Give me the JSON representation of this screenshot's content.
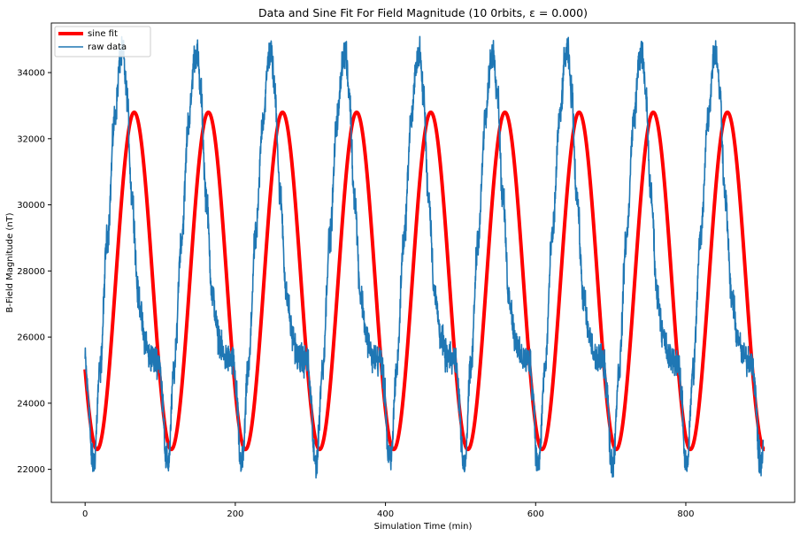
{
  "chart_data": {
    "type": "line",
    "title": "Data and Sine Fit For Field Magnitude (10 0rbits, ε = 0.000)",
    "xlabel": "Simulation Time (min)",
    "ylabel": "B-Field Magnitude (nT)",
    "xlim": [
      -45,
      945
    ],
    "ylim": [
      21000,
      35500
    ],
    "xticks": [
      0,
      200,
      400,
      600,
      800
    ],
    "yticks": [
      22000,
      24000,
      26000,
      28000,
      30000,
      32000,
      34000
    ],
    "grid": false,
    "legend": {
      "placement": "top-left"
    },
    "series": [
      {
        "name": "sine fit",
        "color": "#ff0000",
        "model": {
          "offset": 27700,
          "amplitude": 5100,
          "period_min": 98.75,
          "phase_t0": 40.7
        },
        "x_range": [
          0,
          905
        ]
      },
      {
        "name": "raw data",
        "color": "#1f77b4",
        "x_range": [
          0,
          903
        ],
        "period_min": 98.75,
        "cycle_profile": [
          {
            "phase": 0.0,
            "value": 25300
          },
          {
            "phase": 0.04,
            "value": 24300
          },
          {
            "phase": 0.09,
            "value": 22300
          },
          {
            "phase": 0.12,
            "value": 22200
          },
          {
            "phase": 0.2,
            "value": 25000
          },
          {
            "phase": 0.3,
            "value": 29000
          },
          {
            "phase": 0.4,
            "value": 32600
          },
          {
            "phase": 0.48,
            "value": 34500
          },
          {
            "phase": 0.51,
            "value": 34600
          },
          {
            "phase": 0.56,
            "value": 33400
          },
          {
            "phase": 0.63,
            "value": 30300
          },
          {
            "phase": 0.72,
            "value": 27200
          },
          {
            "phase": 0.8,
            "value": 26000
          },
          {
            "phase": 0.87,
            "value": 25400
          },
          {
            "phase": 0.95,
            "value": 25300
          },
          {
            "phase": 1.0,
            "value": 25300
          }
        ],
        "noise_nT": 450
      }
    ]
  }
}
